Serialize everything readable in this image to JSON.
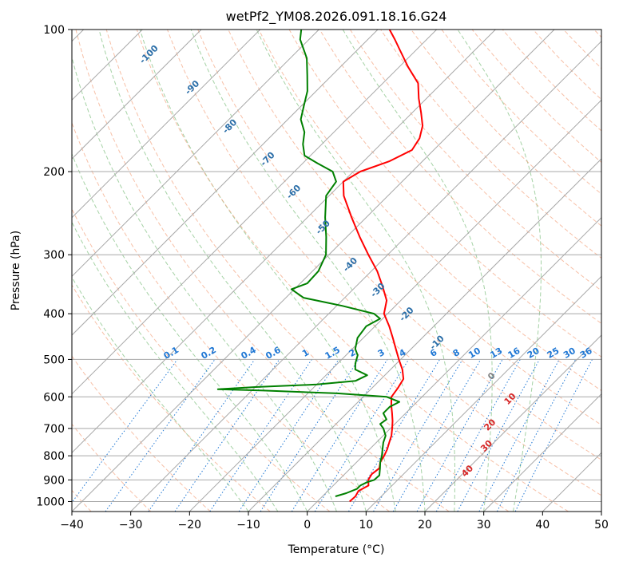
{
  "chart_data": {
    "type": "line",
    "title": "wetPf2_YM08.2026.091.18.16.G24",
    "xlabel": "Temperature (°C)",
    "ylabel": "Pressure (hPa)",
    "xlim": [
      -40,
      50
    ],
    "ylim": [
      1050,
      100
    ],
    "y_scale": "log",
    "skew_deg": 45,
    "grid": true,
    "x_ticks": [
      -40,
      -30,
      -20,
      -10,
      0,
      10,
      20,
      30,
      40,
      50
    ],
    "x_tick_labels": [
      "−40",
      "−30",
      "−20",
      "−10",
      "0",
      "10",
      "20",
      "30",
      "40",
      "50"
    ],
    "y_ticks": [
      100,
      200,
      300,
      400,
      500,
      600,
      700,
      800,
      900,
      1000
    ],
    "y_tick_labels": [
      "100",
      "200",
      "300",
      "400",
      "500",
      "600",
      "700",
      "800",
      "900",
      "1000"
    ],
    "colors": {
      "temperature": "#ff0000",
      "dewpoint": "#008000",
      "isotherm": "#a8a8a8",
      "dry_adiabat": "#f4a582",
      "moist_adiabat": "#7fbf7f",
      "mixing_ratio": "#1f77d4",
      "wetbulb_labels": "#2b6ea8",
      "theta_e_zero": "#808080",
      "theta_e_pos": "#d62728"
    },
    "series": [
      {
        "role": "temperature",
        "color": "#ff0000",
        "points": [
          {
            "p": 1000,
            "t": 5.5
          },
          {
            "p": 975,
            "t": 5.6
          },
          {
            "p": 950,
            "t": 5.2
          },
          {
            "p": 925,
            "t": 6.0
          },
          {
            "p": 900,
            "t": 5.0
          },
          {
            "p": 875,
            "t": 4.6
          },
          {
            "p": 850,
            "t": 4.9
          },
          {
            "p": 825,
            "t": 4.0
          },
          {
            "p": 800,
            "t": 3.6
          },
          {
            "p": 775,
            "t": 3.0
          },
          {
            "p": 750,
            "t": 2.2
          },
          {
            "p": 725,
            "t": 1.4
          },
          {
            "p": 700,
            "t": 0.3
          },
          {
            "p": 675,
            "t": -0.9
          },
          {
            "p": 650,
            "t": -2.3
          },
          {
            "p": 625,
            "t": -3.8
          },
          {
            "p": 600,
            "t": -5.2
          },
          {
            "p": 575,
            "t": -5.6
          },
          {
            "p": 550,
            "t": -6.2
          },
          {
            "p": 525,
            "t": -8.0
          },
          {
            "p": 500,
            "t": -10.3
          },
          {
            "p": 475,
            "t": -12.6
          },
          {
            "p": 450,
            "t": -15.0
          },
          {
            "p": 425,
            "t": -17.6
          },
          {
            "p": 400,
            "t": -20.6
          },
          {
            "p": 375,
            "t": -22.4
          },
          {
            "p": 350,
            "t": -25.5
          },
          {
            "p": 325,
            "t": -29.0
          },
          {
            "p": 300,
            "t": -33.3
          },
          {
            "p": 275,
            "t": -37.8
          },
          {
            "p": 250,
            "t": -42.5
          },
          {
            "p": 225,
            "t": -47.5
          },
          {
            "p": 210,
            "t": -50.0
          },
          {
            "p": 200,
            "t": -48.8
          },
          {
            "p": 190,
            "t": -45.6
          },
          {
            "p": 180,
            "t": -43.7
          },
          {
            "p": 170,
            "t": -44.4
          },
          {
            "p": 160,
            "t": -46.0
          },
          {
            "p": 150,
            "t": -48.5
          },
          {
            "p": 140,
            "t": -51.3
          },
          {
            "p": 130,
            "t": -54.0
          },
          {
            "p": 120,
            "t": -58.5
          },
          {
            "p": 110,
            "t": -63.0
          },
          {
            "p": 105,
            "t": -65.4
          },
          {
            "p": 100,
            "t": -68.0
          }
        ]
      },
      {
        "role": "dewpoint",
        "color": "#008000",
        "points": [
          {
            "p": 975,
            "t": 2.2
          },
          {
            "p": 960,
            "t": 3.5
          },
          {
            "p": 940,
            "t": 4.6
          },
          {
            "p": 925,
            "t": 4.6
          },
          {
            "p": 910,
            "t": 5.2
          },
          {
            "p": 900,
            "t": 6.0
          },
          {
            "p": 880,
            "t": 6.1
          },
          {
            "p": 850,
            "t": 5.0
          },
          {
            "p": 825,
            "t": 4.0
          },
          {
            "p": 800,
            "t": 3.2
          },
          {
            "p": 775,
            "t": 2.2
          },
          {
            "p": 750,
            "t": 1.2
          },
          {
            "p": 725,
            "t": 0.4
          },
          {
            "p": 700,
            "t": -1.2
          },
          {
            "p": 685,
            "t": -2.5
          },
          {
            "p": 670,
            "t": -2.2
          },
          {
            "p": 650,
            "t": -3.8
          },
          {
            "p": 630,
            "t": -3.8
          },
          {
            "p": 615,
            "t": -3.0
          },
          {
            "p": 600,
            "t": -6.0
          },
          {
            "p": 590,
            "t": -15.0
          },
          {
            "p": 582,
            "t": -28.0
          },
          {
            "p": 578,
            "t": -36.0
          },
          {
            "p": 572,
            "t": -30.0
          },
          {
            "p": 565,
            "t": -20.0
          },
          {
            "p": 555,
            "t": -14.0
          },
          {
            "p": 540,
            "t": -13.0
          },
          {
            "p": 525,
            "t": -16.0
          },
          {
            "p": 510,
            "t": -17.0
          },
          {
            "p": 490,
            "t": -18.0
          },
          {
            "p": 475,
            "t": -19.5
          },
          {
            "p": 450,
            "t": -21.0
          },
          {
            "p": 425,
            "t": -21.5
          },
          {
            "p": 410,
            "t": -20.4
          },
          {
            "p": 400,
            "t": -22.3
          },
          {
            "p": 385,
            "t": -29.0
          },
          {
            "p": 370,
            "t": -37.0
          },
          {
            "p": 355,
            "t": -40.5
          },
          {
            "p": 345,
            "t": -38.8
          },
          {
            "p": 325,
            "t": -39.0
          },
          {
            "p": 300,
            "t": -40.5
          },
          {
            "p": 275,
            "t": -43.5
          },
          {
            "p": 250,
            "t": -47.0
          },
          {
            "p": 225,
            "t": -50.5
          },
          {
            "p": 210,
            "t": -51.2
          },
          {
            "p": 200,
            "t": -53.5
          },
          {
            "p": 192,
            "t": -57.5
          },
          {
            "p": 185,
            "t": -61.0
          },
          {
            "p": 175,
            "t": -63.2
          },
          {
            "p": 165,
            "t": -65.0
          },
          {
            "p": 155,
            "t": -67.8
          },
          {
            "p": 145,
            "t": -69.6
          },
          {
            "p": 135,
            "t": -71.5
          },
          {
            "p": 125,
            "t": -74.2
          },
          {
            "p": 115,
            "t": -77.2
          },
          {
            "p": 105,
            "t": -81.5
          },
          {
            "p": 100,
            "t": -83.0
          }
        ]
      }
    ],
    "isotherm_values": [
      -120,
      -110,
      -100,
      -90,
      -80,
      -70,
      -60,
      -50,
      -40,
      -30,
      -20,
      -10,
      0,
      10,
      20,
      30,
      40,
      50
    ],
    "dry_adiabat_theta_c": [
      -40,
      -30,
      -20,
      -10,
      0,
      10,
      20,
      30,
      40,
      50,
      60,
      70,
      80,
      90,
      100,
      110,
      120,
      130,
      140,
      150,
      160,
      170,
      180,
      190,
      200,
      210,
      220
    ],
    "moist_adiabat_start_c": [
      -10,
      -5,
      0,
      5,
      10,
      15,
      20,
      25,
      30,
      35
    ],
    "mixing_ratio_values": [
      0.1,
      0.2,
      0.4,
      0.6,
      1,
      1.5,
      2,
      3,
      4,
      6,
      8,
      10,
      13,
      16,
      20,
      25,
      30,
      36
    ],
    "mixing_ratio_labels": [
      "0.1",
      "0.2",
      "0.4",
      "0.6",
      "1",
      "1.5",
      "2",
      "3",
      "4",
      "6",
      "8",
      "10",
      "13",
      "16",
      "20",
      "25",
      "30",
      "36"
    ],
    "wetbulb_isotherm_labels": [
      {
        "text": "-100",
        "p": 114,
        "t": -104
      },
      {
        "text": "-90",
        "p": 134,
        "t": -91
      },
      {
        "text": "-80",
        "p": 162,
        "t": -78
      },
      {
        "text": "-70",
        "p": 190,
        "t": -66
      },
      {
        "text": "-60",
        "p": 223,
        "t": -56
      },
      {
        "text": "-50",
        "p": 265,
        "t": -45
      },
      {
        "text": "-40",
        "p": 318,
        "t": -34
      },
      {
        "text": "-30",
        "p": 360,
        "t": -25
      },
      {
        "text": "-20",
        "p": 405,
        "t": -16
      },
      {
        "text": "-10",
        "p": 465,
        "t": -6
      }
    ],
    "theta_e_labels": [
      {
        "text": "0",
        "p": 548,
        "t": 9,
        "color": "#808080"
      },
      {
        "text": "10",
        "p": 612,
        "t": 16,
        "color": "#d62728"
      },
      {
        "text": "20",
        "p": 695,
        "t": 17,
        "color": "#d62728"
      },
      {
        "text": "30",
        "p": 770,
        "t": 20,
        "color": "#d62728"
      },
      {
        "text": "40",
        "p": 870,
        "t": 21,
        "color": "#d62728"
      }
    ]
  }
}
